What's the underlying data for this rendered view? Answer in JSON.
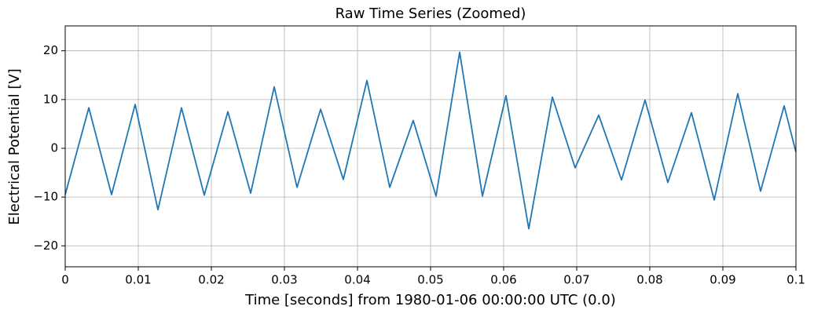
{
  "chart_data": {
    "type": "line",
    "title": "Raw Time Series (Zoomed)",
    "x_label": "Time [seconds] from 1980-01-06 00:00:00 UTC (0.0)",
    "y_label": "Electrical Potential [V]",
    "x": [
      0,
      0.00323,
      0.00634,
      0.00957,
      0.01269,
      0.01591,
      0.01903,
      0.02226,
      0.02538,
      0.0286,
      0.03172,
      0.03495,
      0.03806,
      0.04129,
      0.04441,
      0.04763,
      0.05075,
      0.05398,
      0.0571,
      0.06032,
      0.06344,
      0.06667,
      0.06978,
      0.07301,
      0.07613,
      0.07935,
      0.08247,
      0.0857,
      0.08882,
      0.09204,
      0.09516,
      0.09839,
      0.1
    ],
    "series": [
      {
        "name": "Raw Time Series",
        "color": "#1f77b4",
        "values": [
          -9.5,
          8.3,
          -9.5,
          9,
          -12.6,
          8.3,
          -9.6,
          7.5,
          -9.2,
          12.6,
          -8,
          8,
          -6.4,
          13.9,
          -8,
          5.7,
          -9.8,
          19.7,
          -9.8,
          10.8,
          -16.5,
          10.5,
          -4,
          6.8,
          -6.5,
          9.9,
          -7,
          7.3,
          -10.6,
          11.2,
          -8.8,
          8.7,
          -0.8
        ]
      }
    ],
    "xlim": [
      0,
      0.1
    ],
    "xticks": [
      0,
      0.01,
      0.02,
      0.03,
      0.04,
      0.05,
      0.06,
      0.07,
      0.08,
      0.09,
      0.1
    ],
    "ylim": [
      -24.3,
      25.1
    ],
    "yticks": [
      {
        "value": -20,
        "label": "−20"
      },
      {
        "value": -10,
        "label": "−10"
      },
      0,
      10,
      20
    ],
    "grid": true
  }
}
